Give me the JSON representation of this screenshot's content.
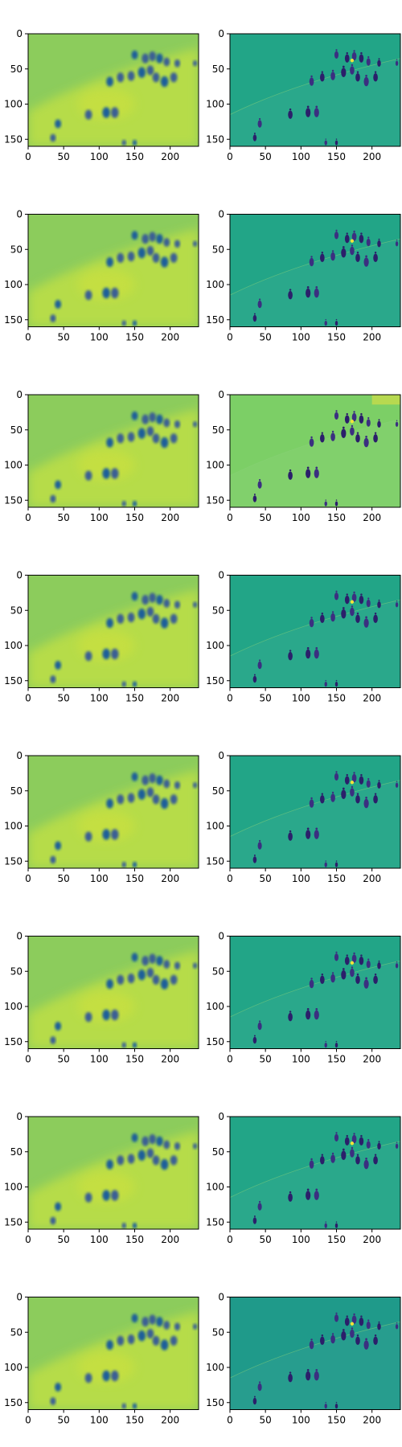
{
  "figure": {
    "rows": 8,
    "cols": 2,
    "image_size": [
      240,
      160
    ]
  },
  "chart_data": [
    {
      "type": "heatmap",
      "row": 1,
      "col": 1,
      "variant": "smooth",
      "xticks": [
        0,
        50,
        100,
        150,
        200
      ],
      "yticks": [
        0,
        50,
        100,
        150
      ],
      "xlim": [
        0,
        240
      ],
      "ylim": [
        160,
        0
      ],
      "colormap": "viridis"
    },
    {
      "type": "heatmap",
      "row": 1,
      "col": 2,
      "variant": "detail",
      "xticks": [
        0,
        50,
        100,
        150,
        200
      ],
      "yticks": [
        0,
        50,
        100,
        150
      ],
      "xlim": [
        0,
        240
      ],
      "ylim": [
        160,
        0
      ],
      "colormap": "viridis"
    },
    {
      "type": "heatmap",
      "row": 2,
      "col": 1,
      "variant": "smooth",
      "xticks": [
        0,
        50,
        100,
        150,
        200
      ],
      "yticks": [
        0,
        50,
        100,
        150
      ],
      "xlim": [
        0,
        240
      ],
      "ylim": [
        160,
        0
      ],
      "colormap": "viridis"
    },
    {
      "type": "heatmap",
      "row": 2,
      "col": 2,
      "variant": "detail",
      "xticks": [
        0,
        50,
        100,
        150,
        200
      ],
      "yticks": [
        0,
        50,
        100,
        150
      ],
      "xlim": [
        0,
        240
      ],
      "ylim": [
        160,
        0
      ],
      "colormap": "viridis"
    },
    {
      "type": "heatmap",
      "row": 3,
      "col": 1,
      "variant": "smooth",
      "xticks": [
        0,
        50,
        100,
        150,
        200
      ],
      "yticks": [
        0,
        50,
        100,
        150
      ],
      "xlim": [
        0,
        240
      ],
      "ylim": [
        160,
        0
      ],
      "colormap": "viridis"
    },
    {
      "type": "heatmap",
      "row": 3,
      "col": 2,
      "variant": "detail-light",
      "xticks": [
        0,
        50,
        100,
        150,
        200
      ],
      "yticks": [
        0,
        50,
        100,
        150
      ],
      "xlim": [
        0,
        240
      ],
      "ylim": [
        160,
        0
      ],
      "colormap": "viridis"
    },
    {
      "type": "heatmap",
      "row": 4,
      "col": 1,
      "variant": "smooth",
      "xticks": [
        0,
        50,
        100,
        150,
        200
      ],
      "yticks": [
        0,
        50,
        100,
        150
      ],
      "xlim": [
        0,
        240
      ],
      "ylim": [
        160,
        0
      ],
      "colormap": "viridis"
    },
    {
      "type": "heatmap",
      "row": 4,
      "col": 2,
      "variant": "detail",
      "xticks": [
        0,
        50,
        100,
        150,
        200
      ],
      "yticks": [
        0,
        50,
        100,
        150
      ],
      "xlim": [
        0,
        240
      ],
      "ylim": [
        160,
        0
      ],
      "colormap": "viridis"
    },
    {
      "type": "heatmap",
      "row": 5,
      "col": 1,
      "variant": "smooth",
      "xticks": [
        0,
        50,
        100,
        150,
        200
      ],
      "yticks": [
        0,
        50,
        100,
        150
      ],
      "xlim": [
        0,
        240
      ],
      "ylim": [
        160,
        0
      ],
      "colormap": "viridis"
    },
    {
      "type": "heatmap",
      "row": 5,
      "col": 2,
      "variant": "detail",
      "xticks": [
        0,
        50,
        100,
        150,
        200
      ],
      "yticks": [
        0,
        50,
        100,
        150
      ],
      "xlim": [
        0,
        240
      ],
      "ylim": [
        160,
        0
      ],
      "colormap": "viridis"
    },
    {
      "type": "heatmap",
      "row": 6,
      "col": 1,
      "variant": "smooth",
      "xticks": [
        0,
        50,
        100,
        150,
        200
      ],
      "yticks": [
        0,
        50,
        100,
        150
      ],
      "xlim": [
        0,
        240
      ],
      "ylim": [
        160,
        0
      ],
      "colormap": "viridis"
    },
    {
      "type": "heatmap",
      "row": 6,
      "col": 2,
      "variant": "detail",
      "xticks": [
        0,
        50,
        100,
        150,
        200
      ],
      "yticks": [
        0,
        50,
        100,
        150
      ],
      "xlim": [
        0,
        240
      ],
      "ylim": [
        160,
        0
      ],
      "colormap": "viridis"
    },
    {
      "type": "heatmap",
      "row": 7,
      "col": 1,
      "variant": "smooth",
      "xticks": [
        0,
        50,
        100,
        150,
        200
      ],
      "yticks": [
        0,
        50,
        100,
        150
      ],
      "xlim": [
        0,
        240
      ],
      "ylim": [
        160,
        0
      ],
      "colormap": "viridis"
    },
    {
      "type": "heatmap",
      "row": 7,
      "col": 2,
      "variant": "detail",
      "xticks": [
        0,
        50,
        100,
        150,
        200
      ],
      "yticks": [
        0,
        50,
        100,
        150
      ],
      "xlim": [
        0,
        240
      ],
      "ylim": [
        160,
        0
      ],
      "colormap": "viridis"
    },
    {
      "type": "heatmap",
      "row": 8,
      "col": 1,
      "variant": "smooth",
      "xticks": [
        0,
        50,
        100,
        150,
        200
      ],
      "yticks": [
        0,
        50,
        100,
        150
      ],
      "xlim": [
        0,
        240
      ],
      "ylim": [
        160,
        0
      ],
      "colormap": "viridis"
    },
    {
      "type": "heatmap",
      "row": 8,
      "col": 2,
      "variant": "detail-dark",
      "xticks": [
        0,
        50,
        100,
        150,
        200
      ],
      "yticks": [
        0,
        50,
        100,
        150
      ],
      "xlim": [
        0,
        240
      ],
      "ylim": [
        160,
        0
      ],
      "colormap": "viridis"
    }
  ],
  "colors": {
    "smooth_bg": "#8ccc5c",
    "smooth_band": "#b6dc48",
    "smooth_light": "#c8e040",
    "detail_bg": "#22a587",
    "detail_light_bg": "#7ccf66",
    "detail_dark_bg": "#1f9a8a",
    "figure_dark": "#3b2f80",
    "figure_deep": "#2b1f6a",
    "figure_mid": "#3a5f94",
    "figure_blue": "#1c5f9a",
    "highlight": "#f2e43a",
    "edge_light": "#8bd17a",
    "spine": "#000000"
  }
}
